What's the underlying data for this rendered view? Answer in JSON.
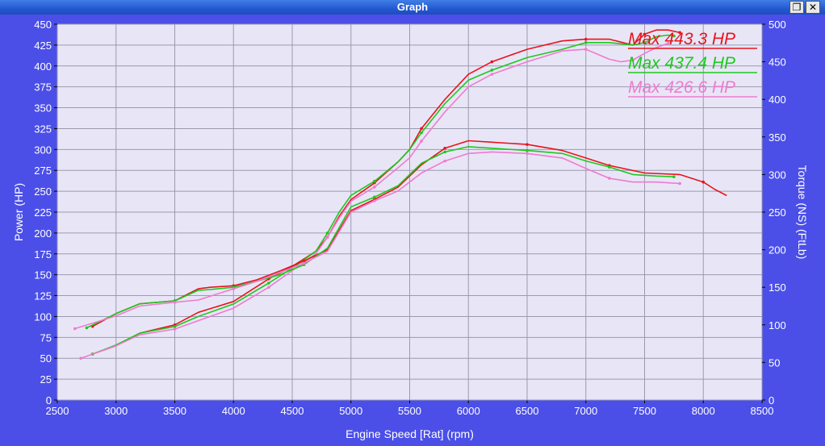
{
  "window": {
    "title": "Graph",
    "restore_icon": "restore-icon",
    "close_icon": "close-icon"
  },
  "chart_data": {
    "type": "line",
    "title": "",
    "xlabel": "Engine Speed [Rat] (rpm)",
    "ylabel": "Power (HP)",
    "y2label": "Torque (NS) (FtLb)",
    "xlim": [
      2500,
      8500
    ],
    "ylim": [
      0,
      450
    ],
    "y2lim": [
      0,
      500
    ],
    "xticks": [
      2500,
      3000,
      3500,
      4000,
      4500,
      5000,
      5500,
      6000,
      6500,
      7000,
      7500,
      8000,
      8500
    ],
    "yticks": [
      0,
      25,
      50,
      75,
      100,
      125,
      150,
      175,
      200,
      225,
      250,
      275,
      300,
      325,
      350,
      375,
      400,
      425,
      450
    ],
    "y2ticks": [
      0,
      50,
      100,
      150,
      200,
      250,
      300,
      350,
      400,
      450,
      500
    ],
    "grid": true,
    "max_labels": [
      {
        "text": "Max 443.3 HP",
        "color": "#e8141c"
      },
      {
        "text": "Max 437.4 HP",
        "color": "#1ec81e"
      },
      {
        "text": "Max 426.6 HP",
        "color": "#f07ad0"
      }
    ],
    "series": [
      {
        "color": "#e8141c",
        "axis": "power",
        "x": [
          2800,
          3000,
          3200,
          3500,
          3700,
          4000,
          4300,
          4500,
          4700,
          4800,
          4900,
          5000,
          5200,
          5400,
          5500,
          5600,
          5800,
          6000,
          6200,
          6500,
          6800,
          7000,
          7200,
          7400,
          7500,
          7600,
          7700,
          7800
        ],
        "values": [
          55,
          65,
          80,
          90,
          105,
          118,
          145,
          160,
          178,
          195,
          220,
          240,
          260,
          285,
          300,
          325,
          360,
          390,
          405,
          420,
          430,
          432,
          432,
          425,
          438,
          443,
          443,
          440
        ]
      },
      {
        "color": "#1ec81e",
        "axis": "power",
        "x": [
          2800,
          3000,
          3200,
          3500,
          3700,
          4000,
          4300,
          4500,
          4700,
          4800,
          4900,
          5000,
          5200,
          5400,
          5500,
          5600,
          5800,
          6000,
          6200,
          6500,
          6800,
          7000,
          7200,
          7400,
          7500,
          7600,
          7700,
          7750
        ],
        "values": [
          55,
          66,
          80,
          88,
          100,
          115,
          140,
          158,
          178,
          200,
          225,
          245,
          262,
          285,
          300,
          320,
          355,
          383,
          395,
          410,
          420,
          428,
          428,
          425,
          428,
          435,
          437,
          436
        ]
      },
      {
        "color": "#f07ad0",
        "axis": "power",
        "x": [
          2700,
          3000,
          3200,
          3500,
          3700,
          4000,
          4300,
          4500,
          4700,
          4800,
          4900,
          5000,
          5200,
          5400,
          5500,
          5600,
          5800,
          6000,
          6200,
          6500,
          6800,
          7000,
          7200,
          7300,
          7400,
          7500,
          7600,
          7700
        ],
        "values": [
          50,
          65,
          78,
          85,
          95,
          110,
          135,
          155,
          175,
          195,
          218,
          238,
          255,
          278,
          290,
          310,
          345,
          375,
          390,
          405,
          418,
          420,
          408,
          405,
          407,
          415,
          422,
          427
        ]
      },
      {
        "color": "#e8141c",
        "axis": "torque",
        "x": [
          2800,
          3000,
          3200,
          3500,
          3700,
          3800,
          4000,
          4200,
          4400,
          4600,
          4800,
          5000,
          5200,
          5400,
          5600,
          5800,
          6000,
          6200,
          6500,
          6800,
          7000,
          7200,
          7500,
          7800,
          8000,
          8100,
          8200
        ],
        "values": [
          98,
          115,
          128,
          132,
          148,
          150,
          152,
          160,
          172,
          185,
          200,
          252,
          267,
          283,
          313,
          335,
          345,
          343,
          340,
          332,
          322,
          312,
          302,
          300,
          290,
          280,
          272
        ]
      },
      {
        "color": "#1ec81e",
        "axis": "torque",
        "x": [
          2750,
          3000,
          3200,
          3500,
          3700,
          3800,
          4000,
          4200,
          4400,
          4600,
          4800,
          5000,
          5200,
          5400,
          5600,
          5800,
          6000,
          6200,
          6500,
          6800,
          7000,
          7200,
          7400,
          7600,
          7750
        ],
        "values": [
          96,
          115,
          128,
          132,
          146,
          147,
          150,
          158,
          167,
          180,
          202,
          257,
          270,
          285,
          315,
          330,
          337,
          335,
          332,
          328,
          318,
          310,
          300,
          298,
          297
        ]
      },
      {
        "color": "#f07ad0",
        "axis": "torque",
        "x": [
          2650,
          3000,
          3200,
          3500,
          3700,
          3800,
          4000,
          4200,
          4400,
          4600,
          4800,
          5000,
          5200,
          5400,
          5600,
          5800,
          6000,
          6200,
          6500,
          6800,
          7000,
          7200,
          7400,
          7600,
          7800
        ],
        "values": [
          95,
          112,
          125,
          130,
          133,
          138,
          148,
          158,
          170,
          182,
          198,
          250,
          265,
          278,
          302,
          318,
          328,
          330,
          328,
          322,
          308,
          295,
          290,
          290,
          288
        ]
      }
    ]
  }
}
